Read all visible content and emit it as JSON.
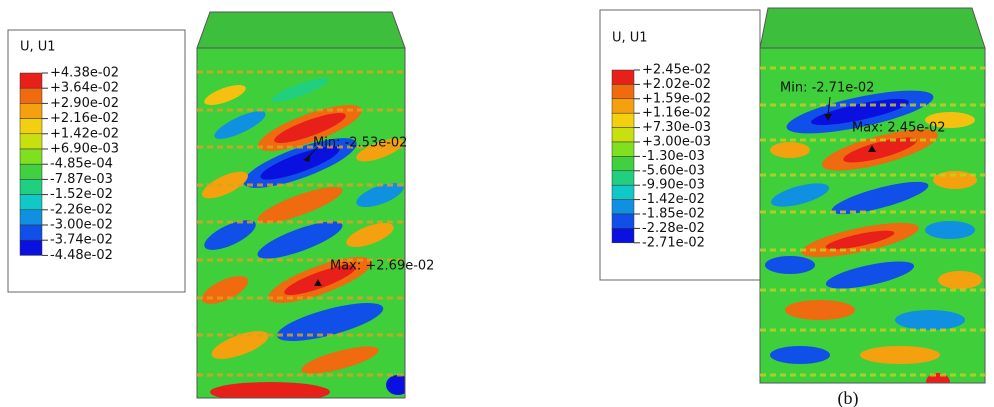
{
  "panels": [
    {
      "legend": {
        "title": "U, U1",
        "labels": [
          "+4.38e-02",
          "+3.64e-02",
          "+2.90e-02",
          "+2.16e-02",
          "+1.42e-02",
          "+6.90e-03",
          "-4.85e-04",
          "-7.87e-03",
          "-1.52e-02",
          "-2.26e-02",
          "-3.00e-02",
          "-3.74e-02",
          "-4.48e-02"
        ]
      },
      "min_label": "Min: -2.53e-02",
      "max_label": "Max: +2.69e-02"
    },
    {
      "legend": {
        "title": "U, U1",
        "labels": [
          "+2.45e-02",
          "+2.02e-02",
          "+1.59e-02",
          "+1.16e-02",
          "+7.30e-03",
          "+3.00e-03",
          "-1.30e-03",
          "-5.60e-03",
          "-9.90e-03",
          "-1.42e-02",
          "-1.85e-02",
          "-2.28e-02",
          "-2.71e-02"
        ]
      },
      "min_label": "Min: -2.71e-02",
      "max_label": "Max: 2.45e-02"
    }
  ],
  "caption": "(b)"
}
